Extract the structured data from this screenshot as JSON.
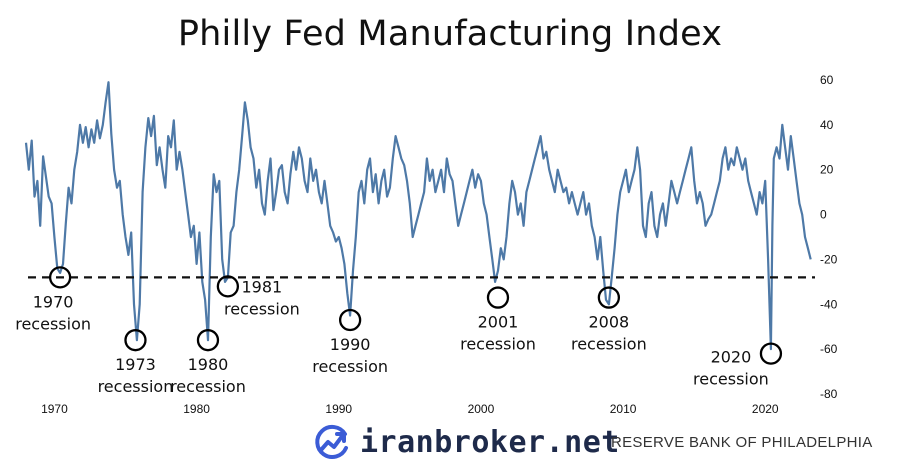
{
  "chart_data": {
    "type": "line",
    "title": "Philly Fed Manufacturing Index",
    "xlabel": "",
    "ylabel": "",
    "xlim": [
      1968,
      2023.5
    ],
    "ylim": [
      -80,
      60
    ],
    "x_ticks": [
      "1970",
      "1980",
      "1990",
      "2000",
      "2010",
      "2020"
    ],
    "y_ticks": [
      "60",
      "40",
      "20",
      "0",
      "-20",
      "-40",
      "-60",
      "-80"
    ],
    "grid": false,
    "reference_line": {
      "value": -28,
      "style": "dashed"
    },
    "series": [
      {
        "color": "#4e79a7",
        "points": [
          [
            1968.0,
            32
          ],
          [
            1968.2,
            20
          ],
          [
            1968.4,
            33
          ],
          [
            1968.6,
            8
          ],
          [
            1968.8,
            15
          ],
          [
            1969.0,
            -5
          ],
          [
            1969.2,
            26
          ],
          [
            1969.4,
            17
          ],
          [
            1969.6,
            8
          ],
          [
            1969.8,
            5
          ],
          [
            1970.0,
            -10
          ],
          [
            1970.2,
            -24
          ],
          [
            1970.4,
            -26
          ],
          [
            1970.6,
            -22
          ],
          [
            1970.8,
            -4
          ],
          [
            1971.0,
            12
          ],
          [
            1971.2,
            5
          ],
          [
            1971.4,
            20
          ],
          [
            1971.6,
            28
          ],
          [
            1971.8,
            40
          ],
          [
            1972.0,
            32
          ],
          [
            1972.2,
            39
          ],
          [
            1972.4,
            30
          ],
          [
            1972.6,
            38
          ],
          [
            1972.8,
            32
          ],
          [
            1973.0,
            42
          ],
          [
            1973.2,
            34
          ],
          [
            1973.4,
            40
          ],
          [
            1973.6,
            50
          ],
          [
            1973.8,
            59
          ],
          [
            1974.0,
            36
          ],
          [
            1974.2,
            20
          ],
          [
            1974.4,
            12
          ],
          [
            1974.6,
            15
          ],
          [
            1974.8,
            0
          ],
          [
            1975.0,
            -10
          ],
          [
            1975.2,
            -18
          ],
          [
            1975.4,
            -8
          ],
          [
            1975.6,
            -40
          ],
          [
            1975.8,
            -56
          ],
          [
            1976.0,
            -40
          ],
          [
            1976.2,
            10
          ],
          [
            1976.4,
            30
          ],
          [
            1976.6,
            43
          ],
          [
            1976.8,
            35
          ],
          [
            1977.0,
            44
          ],
          [
            1977.2,
            22
          ],
          [
            1977.4,
            30
          ],
          [
            1977.6,
            20
          ],
          [
            1977.8,
            12
          ],
          [
            1978.0,
            35
          ],
          [
            1978.2,
            30
          ],
          [
            1978.4,
            42
          ],
          [
            1978.6,
            20
          ],
          [
            1978.8,
            28
          ],
          [
            1979.0,
            20
          ],
          [
            1979.2,
            10
          ],
          [
            1979.4,
            0
          ],
          [
            1979.6,
            -10
          ],
          [
            1979.8,
            -5
          ],
          [
            1980.0,
            -22
          ],
          [
            1980.2,
            -8
          ],
          [
            1980.4,
            -30
          ],
          [
            1980.6,
            -38
          ],
          [
            1980.8,
            -56
          ],
          [
            1981.0,
            -10
          ],
          [
            1981.2,
            18
          ],
          [
            1981.4,
            10
          ],
          [
            1981.6,
            15
          ],
          [
            1981.8,
            -20
          ],
          [
            1982.0,
            -30
          ],
          [
            1982.2,
            -28
          ],
          [
            1982.4,
            -8
          ],
          [
            1982.6,
            -5
          ],
          [
            1982.8,
            10
          ],
          [
            1983.0,
            20
          ],
          [
            1983.2,
            35
          ],
          [
            1983.4,
            50
          ],
          [
            1983.6,
            42
          ],
          [
            1983.8,
            30
          ],
          [
            1984.0,
            25
          ],
          [
            1984.2,
            12
          ],
          [
            1984.4,
            20
          ],
          [
            1984.6,
            5
          ],
          [
            1984.8,
            0
          ],
          [
            1985.0,
            15
          ],
          [
            1985.2,
            25
          ],
          [
            1985.4,
            2
          ],
          [
            1985.6,
            10
          ],
          [
            1985.8,
            20
          ],
          [
            1986.0,
            22
          ],
          [
            1986.2,
            10
          ],
          [
            1986.4,
            5
          ],
          [
            1986.6,
            18
          ],
          [
            1986.8,
            28
          ],
          [
            1987.0,
            20
          ],
          [
            1987.2,
            30
          ],
          [
            1987.4,
            25
          ],
          [
            1987.6,
            15
          ],
          [
            1987.8,
            10
          ],
          [
            1988.0,
            25
          ],
          [
            1988.2,
            15
          ],
          [
            1988.4,
            20
          ],
          [
            1988.6,
            10
          ],
          [
            1988.8,
            5
          ],
          [
            1989.0,
            15
          ],
          [
            1989.2,
            5
          ],
          [
            1989.4,
            -5
          ],
          [
            1989.6,
            -8
          ],
          [
            1989.8,
            -12
          ],
          [
            1990.0,
            -10
          ],
          [
            1990.2,
            -15
          ],
          [
            1990.4,
            -22
          ],
          [
            1990.6,
            -35
          ],
          [
            1990.8,
            -45
          ],
          [
            1991.0,
            -25
          ],
          [
            1991.2,
            -10
          ],
          [
            1991.4,
            10
          ],
          [
            1991.6,
            15
          ],
          [
            1991.8,
            5
          ],
          [
            1992.0,
            20
          ],
          [
            1992.2,
            25
          ],
          [
            1992.4,
            10
          ],
          [
            1992.6,
            18
          ],
          [
            1992.8,
            5
          ],
          [
            1993.0,
            15
          ],
          [
            1993.2,
            20
          ],
          [
            1993.4,
            8
          ],
          [
            1993.6,
            12
          ],
          [
            1993.8,
            25
          ],
          [
            1994.0,
            35
          ],
          [
            1994.2,
            30
          ],
          [
            1994.4,
            25
          ],
          [
            1994.6,
            22
          ],
          [
            1994.8,
            15
          ],
          [
            1995.0,
            5
          ],
          [
            1995.2,
            -10
          ],
          [
            1995.4,
            -5
          ],
          [
            1995.6,
            0
          ],
          [
            1995.8,
            5
          ],
          [
            1996.0,
            10
          ],
          [
            1996.2,
            25
          ],
          [
            1996.4,
            15
          ],
          [
            1996.6,
            20
          ],
          [
            1996.8,
            10
          ],
          [
            1997.0,
            15
          ],
          [
            1997.2,
            20
          ],
          [
            1997.4,
            10
          ],
          [
            1997.6,
            25
          ],
          [
            1997.8,
            18
          ],
          [
            1998.0,
            15
          ],
          [
            1998.2,
            5
          ],
          [
            1998.4,
            -5
          ],
          [
            1998.6,
            0
          ],
          [
            1998.8,
            5
          ],
          [
            1999.0,
            10
          ],
          [
            1999.2,
            15
          ],
          [
            1999.4,
            20
          ],
          [
            1999.6,
            12
          ],
          [
            1999.8,
            18
          ],
          [
            2000.0,
            15
          ],
          [
            2000.2,
            5
          ],
          [
            2000.4,
            0
          ],
          [
            2000.6,
            -10
          ],
          [
            2000.8,
            -20
          ],
          [
            2001.0,
            -30
          ],
          [
            2001.2,
            -25
          ],
          [
            2001.4,
            -15
          ],
          [
            2001.6,
            -20
          ],
          [
            2001.8,
            -10
          ],
          [
            2002.0,
            5
          ],
          [
            2002.2,
            15
          ],
          [
            2002.4,
            10
          ],
          [
            2002.6,
            0
          ],
          [
            2002.8,
            5
          ],
          [
            2003.0,
            -5
          ],
          [
            2003.2,
            10
          ],
          [
            2003.4,
            15
          ],
          [
            2003.6,
            20
          ],
          [
            2003.8,
            25
          ],
          [
            2004.0,
            30
          ],
          [
            2004.2,
            35
          ],
          [
            2004.4,
            25
          ],
          [
            2004.6,
            28
          ],
          [
            2004.8,
            20
          ],
          [
            2005.0,
            15
          ],
          [
            2005.2,
            10
          ],
          [
            2005.4,
            20
          ],
          [
            2005.6,
            15
          ],
          [
            2005.8,
            10
          ],
          [
            2006.0,
            12
          ],
          [
            2006.2,
            5
          ],
          [
            2006.4,
            10
          ],
          [
            2006.6,
            5
          ],
          [
            2006.8,
            0
          ],
          [
            2007.0,
            5
          ],
          [
            2007.2,
            10
          ],
          [
            2007.4,
            0
          ],
          [
            2007.6,
            5
          ],
          [
            2007.8,
            -5
          ],
          [
            2008.0,
            -10
          ],
          [
            2008.2,
            -20
          ],
          [
            2008.4,
            -10
          ],
          [
            2008.6,
            -25
          ],
          [
            2008.8,
            -38
          ],
          [
            2009.0,
            -40
          ],
          [
            2009.2,
            -28
          ],
          [
            2009.4,
            -15
          ],
          [
            2009.6,
            0
          ],
          [
            2009.8,
            10
          ],
          [
            2010.0,
            15
          ],
          [
            2010.2,
            20
          ],
          [
            2010.4,
            10
          ],
          [
            2010.6,
            15
          ],
          [
            2010.8,
            20
          ],
          [
            2011.0,
            30
          ],
          [
            2011.2,
            20
          ],
          [
            2011.4,
            -5
          ],
          [
            2011.6,
            -10
          ],
          [
            2011.8,
            5
          ],
          [
            2012.0,
            10
          ],
          [
            2012.2,
            -5
          ],
          [
            2012.4,
            -10
          ],
          [
            2012.6,
            0
          ],
          [
            2012.8,
            5
          ],
          [
            2013.0,
            -5
          ],
          [
            2013.2,
            5
          ],
          [
            2013.4,
            15
          ],
          [
            2013.6,
            10
          ],
          [
            2013.8,
            5
          ],
          [
            2014.0,
            10
          ],
          [
            2014.2,
            15
          ],
          [
            2014.4,
            20
          ],
          [
            2014.6,
            25
          ],
          [
            2014.8,
            30
          ],
          [
            2015.0,
            15
          ],
          [
            2015.2,
            5
          ],
          [
            2015.4,
            10
          ],
          [
            2015.6,
            5
          ],
          [
            2015.8,
            -5
          ],
          [
            2016.0,
            -2
          ],
          [
            2016.2,
            0
          ],
          [
            2016.4,
            5
          ],
          [
            2016.6,
            10
          ],
          [
            2016.8,
            15
          ],
          [
            2017.0,
            25
          ],
          [
            2017.2,
            30
          ],
          [
            2017.4,
            20
          ],
          [
            2017.6,
            25
          ],
          [
            2017.8,
            22
          ],
          [
            2018.0,
            30
          ],
          [
            2018.2,
            25
          ],
          [
            2018.4,
            20
          ],
          [
            2018.6,
            25
          ],
          [
            2018.8,
            15
          ],
          [
            2019.0,
            10
          ],
          [
            2019.2,
            5
          ],
          [
            2019.4,
            0
          ],
          [
            2019.6,
            10
          ],
          [
            2019.8,
            5
          ],
          [
            2020.0,
            15
          ],
          [
            2020.2,
            -20
          ],
          [
            2020.4,
            -60
          ],
          [
            2020.5,
            -5
          ],
          [
            2020.6,
            25
          ],
          [
            2020.8,
            30
          ],
          [
            2021.0,
            25
          ],
          [
            2021.2,
            40
          ],
          [
            2021.4,
            30
          ],
          [
            2021.6,
            20
          ],
          [
            2021.8,
            35
          ],
          [
            2022.0,
            25
          ],
          [
            2022.2,
            15
          ],
          [
            2022.4,
            5
          ],
          [
            2022.6,
            0
          ],
          [
            2022.8,
            -10
          ],
          [
            2023.0,
            -15
          ],
          [
            2023.2,
            -20
          ]
        ]
      }
    ],
    "annotations": [
      {
        "x": 1970.4,
        "y": -28,
        "label_lines": [
          "1970",
          "recession"
        ],
        "label_pos": "below-left"
      },
      {
        "x": 1975.7,
        "y": -56,
        "label_lines": [
          "1973",
          "recession"
        ],
        "label_pos": "below"
      },
      {
        "x": 1980.8,
        "y": -56,
        "label_lines": [
          "1980",
          "recession"
        ],
        "label_pos": "below"
      },
      {
        "x": 1982.2,
        "y": -32,
        "label_lines": [
          "1981",
          "recession"
        ],
        "label_pos": "right"
      },
      {
        "x": 1990.8,
        "y": -47,
        "label_lines": [
          "1990",
          "recession"
        ],
        "label_pos": "below"
      },
      {
        "x": 2001.2,
        "y": -37,
        "label_lines": [
          "2001",
          "recession"
        ],
        "label_pos": "below"
      },
      {
        "x": 2009.0,
        "y": -37,
        "label_lines": [
          "2008",
          "recession"
        ],
        "label_pos": "below"
      },
      {
        "x": 2020.4,
        "y": -62,
        "label_lines": [
          "2020",
          "recession"
        ],
        "label_pos": "left"
      }
    ]
  },
  "footer": {
    "brand": "iranbroker.net",
    "source": "RESERVE BANK OF PHILADELPHIA",
    "logo_icon": "chart-trend-icon",
    "logo_color": "#3b5cd6"
  }
}
